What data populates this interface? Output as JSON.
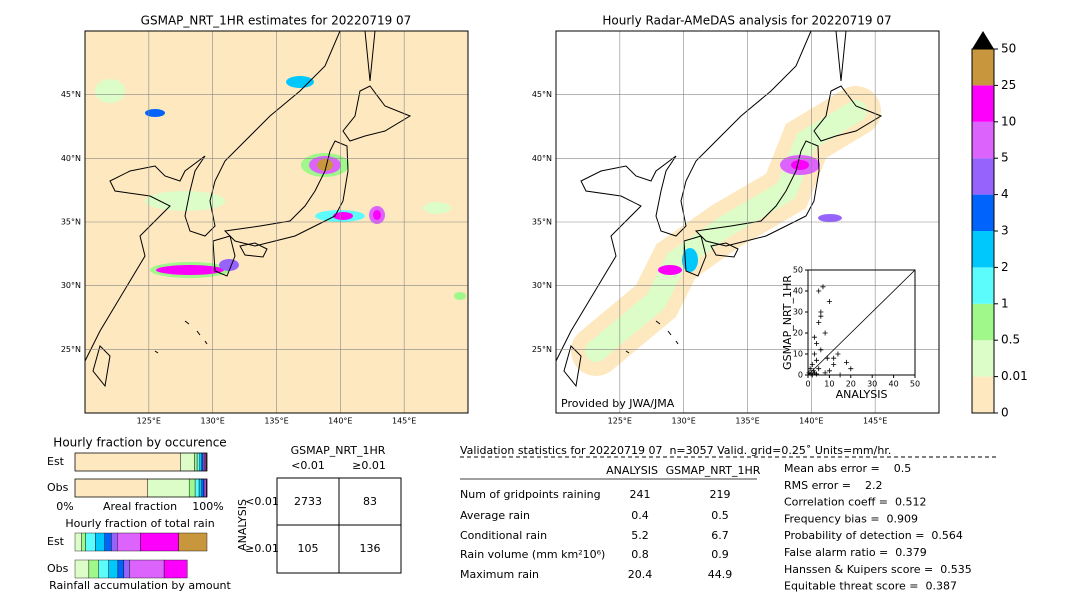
{
  "left_map": {
    "title": "GSMAP_NRT_1HR estimates for 20220719 07",
    "xlim": [
      120,
      150
    ],
    "ylim": [
      20,
      50
    ],
    "xticks": [
      {
        "value": 125,
        "label": "125°E"
      },
      {
        "value": 130,
        "label": "130°E"
      },
      {
        "value": 135,
        "label": "135°E"
      },
      {
        "value": 140,
        "label": "140°E"
      },
      {
        "value": 145,
        "label": "145°E"
      }
    ],
    "yticks": [
      {
        "value": 25,
        "label": "25°N"
      },
      {
        "value": 30,
        "label": "30°N"
      },
      {
        "value": 35,
        "label": "35°N"
      },
      {
        "value": 40,
        "label": "40°N"
      },
      {
        "value": 45,
        "label": "45°N"
      }
    ]
  },
  "right_map": {
    "title": "Hourly Radar-AMeDAS analysis for 20220719 07",
    "credit": "Provided by JWA/JMA",
    "xlim": [
      120,
      150
    ],
    "ylim": [
      20,
      50
    ],
    "xticks": [
      {
        "value": 125,
        "label": "125°E"
      },
      {
        "value": 130,
        "label": "130°E"
      },
      {
        "value": 135,
        "label": "135°E"
      },
      {
        "value": 140,
        "label": "140°E"
      },
      {
        "value": 145,
        "label": "145°E"
      }
    ],
    "yticks": [
      {
        "value": 25,
        "label": "25°N"
      },
      {
        "value": 30,
        "label": "30°N"
      },
      {
        "value": 35,
        "label": "35°N"
      },
      {
        "value": 40,
        "label": "40°N"
      },
      {
        "value": 45,
        "label": "45°N"
      }
    ]
  },
  "colorbar": {
    "levels": [
      0,
      0.01,
      0.5,
      1,
      2,
      3,
      4,
      5,
      10,
      25,
      50
    ],
    "colors": [
      "#fee8c0",
      "#dcfcc8",
      "#a0f78a",
      "#5cfcfc",
      "#00c8fc",
      "#0064fc",
      "#9664fc",
      "#dc64fc",
      "#fc00fc",
      "#c8963c"
    ],
    "extend_color": "#000000"
  },
  "chart_data": {
    "type": "scatter",
    "xlabel": "ANALYSIS",
    "ylabel": "GSMAP_NRT_1HR",
    "x": [
      0.5,
      1,
      1.5,
      2,
      2.5,
      3,
      3,
      4,
      4,
      5,
      5,
      6,
      6,
      7,
      8,
      9,
      10,
      12,
      14,
      18,
      20,
      2,
      3,
      4,
      5,
      6,
      8,
      10,
      12,
      15
    ],
    "y": [
      1,
      3,
      0.5,
      5,
      2,
      10,
      1,
      7,
      15,
      3,
      25,
      12,
      30,
      42,
      20,
      8,
      35,
      5,
      10,
      6,
      3,
      0,
      18,
      0.5,
      40,
      28,
      1,
      2,
      8,
      0
    ],
    "xlim": [
      0,
      50
    ],
    "ylim": [
      0,
      50
    ],
    "xticks": [
      0,
      10,
      20,
      30,
      40,
      50
    ],
    "yticks": [
      0,
      10,
      20,
      30,
      40,
      50
    ]
  },
  "occurrence": {
    "title": "Hourly fraction by occurence",
    "xlabel": "Areal fraction",
    "xlim": [
      0,
      100
    ],
    "xticks": [
      {
        "value": 0,
        "label": "0%"
      },
      {
        "value": 100,
        "label": "100%"
      }
    ],
    "series": [
      {
        "name": "Est",
        "values": [
          80,
          10.5,
          2,
          2,
          1.5,
          1,
          1,
          1,
          0.5,
          0.5
        ]
      },
      {
        "name": "Obs",
        "values": [
          55,
          31.5,
          4.5,
          3,
          2,
          1.5,
          1,
          1,
          0.5,
          0
        ]
      }
    ]
  },
  "total_rain": {
    "title": "Hourly fraction of total rain",
    "xlabel": "Rainfall accumulation by amount",
    "xlim": [
      0,
      100
    ],
    "series": [
      {
        "name": "Est",
        "values": [
          0,
          5,
          3,
          7.5,
          7,
          5,
          4.5,
          17.5,
          29,
          21.5
        ]
      },
      {
        "name": "Obs",
        "values": [
          0,
          10.5,
          7.5,
          7.5,
          7,
          4.5,
          4.5,
          26,
          17.5,
          0
        ]
      }
    ]
  },
  "contingency": {
    "title": "GSMAP_NRT_1HR",
    "col_labels": [
      "<0.01",
      "≥0.01"
    ],
    "row_title": "ANALYSIS",
    "row_labels": [
      "<0.01",
      "≥0.01"
    ],
    "cells": [
      [
        2733,
        83
      ],
      [
        105,
        136
      ]
    ]
  },
  "validation": {
    "header": "Validation statistics for 20220719 07  n=3057 Valid. grid=0.25˚ Units=mm/hr.",
    "columns": [
      "ANALYSIS",
      "GSMAP_NRT_1HR"
    ],
    "rows": [
      [
        "Num of gridpoints raining",
        241,
        219
      ],
      [
        "Average rain",
        0.4,
        0.5
      ],
      [
        "Conditional rain",
        5.2,
        6.7
      ],
      [
        "Rain volume (mm km²10⁶)",
        0.8,
        0.9
      ],
      [
        "Maximum rain",
        20.4,
        44.9
      ]
    ],
    "scores": [
      "Mean abs error =    0.5",
      "RMS error =    2.2",
      "Correlation coeff =  0.512",
      "Frequency bias =  0.909",
      "Probability of detection =  0.564",
      "False alarm ratio =  0.379",
      "Hanssen & Kuipers score =  0.535",
      "Equitable threat score =  0.387"
    ]
  }
}
